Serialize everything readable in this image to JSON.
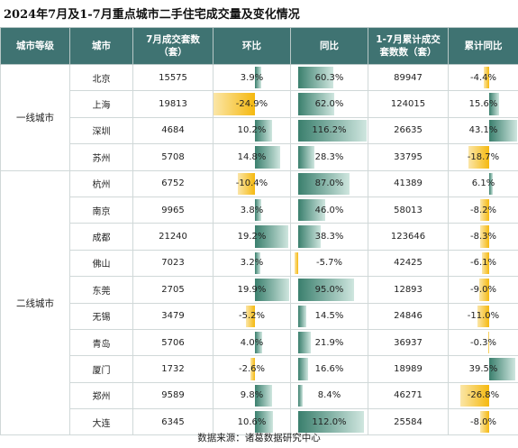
{
  "title": "2024年7月及1-7月重点城市二手住宅成交量及变化情况",
  "headers": [
    "城市等级",
    "城市",
    "7月成交套数\n（套）",
    "环比",
    "同比",
    "1-7月累计成交\n套数数（套）",
    "累计同比"
  ],
  "tiers": [
    {
      "label": "一线城市",
      "rows": 4
    },
    {
      "label": "二线城市",
      "rows": 10
    }
  ],
  "chart_data": {
    "type": "table",
    "columns": [
      "城市等级",
      "城市",
      "7月成交套数（套）",
      "环比",
      "同比",
      "1-7月累计成交套数（套）",
      "累计同比"
    ],
    "rows": [
      {
        "city": "北京",
        "july": "15575",
        "mom": "3.9%",
        "yoy": "60.3%",
        "ytd": "89947",
        "ytd_yoy": "-4.4%"
      },
      {
        "city": "上海",
        "july": "19813",
        "mom": "-24.9%",
        "yoy": "62.0%",
        "ytd": "124015",
        "ytd_yoy": "15.6%"
      },
      {
        "city": "深圳",
        "july": "4684",
        "mom": "10.2%",
        "yoy": "116.2%",
        "ytd": "26635",
        "ytd_yoy": "43.1%"
      },
      {
        "city": "苏州",
        "july": "5708",
        "mom": "14.8%",
        "yoy": "28.3%",
        "ytd": "33795",
        "ytd_yoy": "-18.7%"
      },
      {
        "city": "杭州",
        "july": "6752",
        "mom": "-10.4%",
        "yoy": "87.0%",
        "ytd": "41389",
        "ytd_yoy": "6.1%"
      },
      {
        "city": "南京",
        "july": "9965",
        "mom": "3.8%",
        "yoy": "46.0%",
        "ytd": "58013",
        "ytd_yoy": "-8.2%"
      },
      {
        "city": "成都",
        "july": "21240",
        "mom": "19.2%",
        "yoy": "38.3%",
        "ytd": "123646",
        "ytd_yoy": "-8.3%"
      },
      {
        "city": "佛山",
        "july": "7023",
        "mom": "3.2%",
        "yoy": "-5.7%",
        "ytd": "42425",
        "ytd_yoy": "-6.1%"
      },
      {
        "city": "东莞",
        "july": "2705",
        "mom": "19.9%",
        "yoy": "95.0%",
        "ytd": "12893",
        "ytd_yoy": "-9.0%"
      },
      {
        "city": "无锡",
        "july": "3479",
        "mom": "-5.2%",
        "yoy": "14.5%",
        "ytd": "24846",
        "ytd_yoy": "-11.0%"
      },
      {
        "city": "青岛",
        "july": "5706",
        "mom": "4.0%",
        "yoy": "21.9%",
        "ytd": "36937",
        "ytd_yoy": "-0.3%"
      },
      {
        "city": "厦门",
        "july": "1732",
        "mom": "-2.6%",
        "yoy": "16.6%",
        "ytd": "18989",
        "ytd_yoy": "39.5%"
      },
      {
        "city": "郑州",
        "july": "9589",
        "mom": "9.8%",
        "yoy": "8.4%",
        "ytd": "46271",
        "ytd_yoy": "-26.8%"
      },
      {
        "city": "大连",
        "july": "6345",
        "mom": "10.6%",
        "yoy": "112.0%",
        "ytd": "25584",
        "ytd_yoy": "-8.0%"
      }
    ]
  },
  "footer": "数据来源：诸葛数据研究中心",
  "colors": {
    "header_bg": "#3f7372",
    "positive_bar": "#3a7f6d",
    "negative_bar": "#f5b90f"
  }
}
